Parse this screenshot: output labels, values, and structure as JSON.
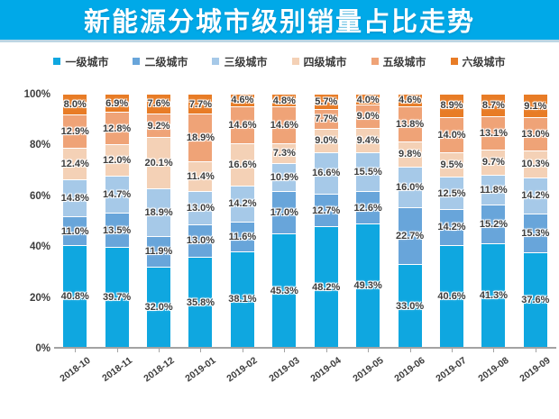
{
  "banner": {
    "title": "新能源分城市级别销量占比走势",
    "background_color": "#00a9e8",
    "text_color": "#ffffff"
  },
  "legend": {
    "items": [
      "一级城市",
      "二级城市",
      "三级城市",
      "四级城市",
      "五级城市",
      "六级城市"
    ]
  },
  "chart_data": {
    "type": "bar",
    "stacked": true,
    "stacked_total": "100%",
    "title": "新能源分城市级别销量占比走势",
    "xlabel": "",
    "ylabel": "",
    "ylim": [
      0,
      100
    ],
    "grid": false,
    "legend_position": "top-center",
    "y_ticks": [
      {
        "label": "0%",
        "value": 0
      },
      {
        "label": "20%",
        "value": 20
      },
      {
        "label": "40%",
        "value": 40
      },
      {
        "label": "60%",
        "value": 60
      },
      {
        "label": "80%",
        "value": 80
      },
      {
        "label": "100%",
        "value": 100
      }
    ],
    "categories": [
      "2018-10",
      "2018-11",
      "2018-12",
      "2019-01",
      "2019-02",
      "2019-03",
      "2019-04",
      "2019-05",
      "2019-06",
      "2019-07",
      "2019-08",
      "2019-09"
    ],
    "series": [
      {
        "name": "一级城市",
        "color": "#0fa7e0",
        "hex": "#0fa7e0",
        "values": [
          40.8,
          39.7,
          32.0,
          35.8,
          38.1,
          45.3,
          48.2,
          49.3,
          33.0,
          40.6,
          41.3,
          37.6
        ]
      },
      {
        "name": "二级城市",
        "color": "#68a5da",
        "hex": "#68a5da",
        "values": [
          11.0,
          13.5,
          11.9,
          13.0,
          11.6,
          17.0,
          12.7,
          12.6,
          22.7,
          14.2,
          15.2,
          15.3
        ]
      },
      {
        "name": "三级城市",
        "color": "#a6c9e8",
        "hex": "#a6c9e8",
        "values": [
          14.8,
          14.7,
          18.9,
          13.0,
          14.2,
          10.9,
          16.6,
          15.5,
          16.0,
          12.5,
          11.8,
          14.2
        ]
      },
      {
        "name": "四级城市",
        "color": "#f4d1b6",
        "hex": "#f4d1b6",
        "values": [
          12.4,
          12.0,
          20.1,
          11.4,
          16.6,
          7.3,
          9.0,
          9.4,
          9.8,
          9.5,
          9.7,
          10.3
        ]
      },
      {
        "name": "五级城市",
        "color": "#efa377",
        "hex": "#efa377",
        "values": [
          12.9,
          12.8,
          9.2,
          18.9,
          14.6,
          14.6,
          7.7,
          9.0,
          13.8,
          14.0,
          13.1,
          13.0
        ]
      },
      {
        "name": "六级城市",
        "color": "#e87c26",
        "hex": "#e87c26",
        "values": [
          8.0,
          6.9,
          7.6,
          7.7,
          4.6,
          4.8,
          5.7,
          4.0,
          4.6,
          8.9,
          8.7,
          9.1
        ]
      }
    ],
    "value_label_suffix": "%",
    "axis_color": "#a3a3a3",
    "label_color": "#3c3c3c"
  }
}
